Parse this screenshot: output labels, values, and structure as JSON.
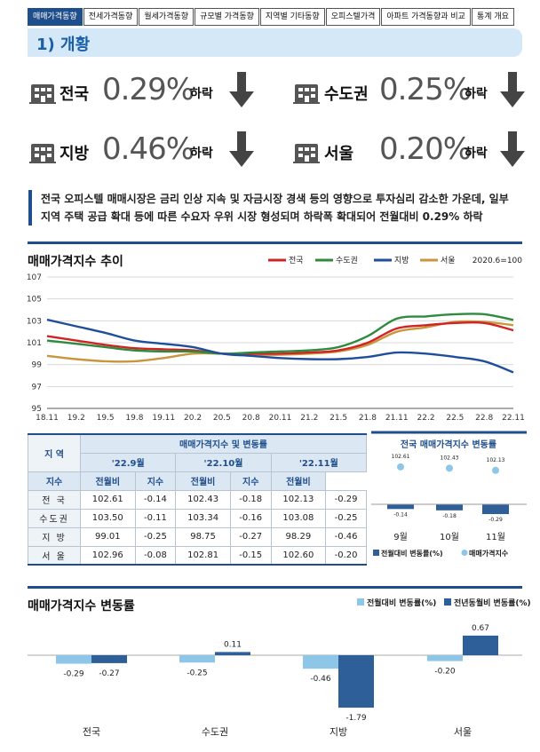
{
  "nav": {
    "tabs": [
      "매매가격동향",
      "전세가격동향",
      "월세가격동향",
      "규모별 가격동향",
      "지역별 기타동향",
      "오피스텔가격",
      "아파트 가격동향과 비교",
      "통계 개요"
    ]
  },
  "section": {
    "title": "1) 개황"
  },
  "summary": [
    {
      "region": "전국",
      "value": "0.29%",
      "direction": "하락"
    },
    {
      "region": "수도권",
      "value": "0.25%",
      "direction": "하락"
    },
    {
      "region": "지방",
      "value": "0.46%",
      "direction": "하락"
    },
    {
      "region": "서울",
      "value": "0.20%",
      "direction": "하락"
    }
  ],
  "note": {
    "line1": "전국 오피스텔 매매시장은 금리 인상 지속 및 자금시장 경색 등의 영향으로 투자심리 감소한 가운데, 일부",
    "line2": "지역 주택 공급 확대 등에 따른 수요자 우위 시장 형성되며 하락폭 확대되어 전월대비 0.29% 하락"
  },
  "colors": {
    "nationwide": "#d02424",
    "capital": "#2e8b3e",
    "regional": "#1f4e9a",
    "seoul": "#c8963c",
    "accent": "#1f4e8c",
    "bar_light": "#8ec6e8",
    "bar_dark": "#2f5f98"
  },
  "chart_data": [
    {
      "type": "line",
      "title": "매매가격지수 추이",
      "note": "2020.6=100",
      "x_ticks": [
        "18.11",
        "19.2",
        "19.5",
        "19.8",
        "19.11",
        "20.2",
        "20.5",
        "20.8",
        "20.11",
        "21.2",
        "21.5",
        "21.8",
        "21.11",
        "22.2",
        "22.5",
        "22.8",
        "22.11"
      ],
      "ylim": [
        95,
        107
      ],
      "y_ticks": [
        95,
        97,
        99,
        101,
        103,
        105,
        107
      ],
      "legend_position": "top-right",
      "series": [
        {
          "name": "전국",
          "values": [
            101.6,
            101.2,
            100.8,
            100.5,
            100.4,
            100.3,
            100.0,
            100.0,
            100.0,
            100.1,
            100.3,
            101.0,
            102.3,
            102.6,
            102.8,
            102.8,
            102.13
          ]
        },
        {
          "name": "수도권",
          "values": [
            101.2,
            100.9,
            100.6,
            100.3,
            100.2,
            100.2,
            100.0,
            100.1,
            100.2,
            100.3,
            100.6,
            101.6,
            103.2,
            103.4,
            103.6,
            103.6,
            103.08
          ]
        },
        {
          "name": "지방",
          "values": [
            103.1,
            102.5,
            101.9,
            101.2,
            100.9,
            100.6,
            100.0,
            99.8,
            99.6,
            99.5,
            99.5,
            99.7,
            100.1,
            100.0,
            99.7,
            99.3,
            98.29
          ]
        },
        {
          "name": "서울",
          "values": [
            99.8,
            99.5,
            99.3,
            99.3,
            99.6,
            100.0,
            100.0,
            99.9,
            99.9,
            100.0,
            100.2,
            100.8,
            102.0,
            102.4,
            102.9,
            102.9,
            102.6
          ]
        }
      ]
    },
    {
      "type": "table",
      "title": "매매가격지수 및 변동률",
      "row_header": "지 역",
      "periods": [
        "'22.9월",
        "'22.10월",
        "'22.11월"
      ],
      "subcols": [
        "지수",
        "전월비"
      ],
      "rows": [
        {
          "region": "전 국",
          "cells": [
            "102.61",
            "-0.14",
            "102.43",
            "-0.18",
            "102.13",
            "-0.29"
          ]
        },
        {
          "region": "수도권",
          "cells": [
            "103.50",
            "-0.11",
            "103.34",
            "-0.16",
            "103.08",
            "-0.25"
          ]
        },
        {
          "region": "지 방",
          "cells": [
            "99.01",
            "-0.25",
            "98.75",
            "-0.27",
            "98.29",
            "-0.46"
          ]
        },
        {
          "region": "서 울",
          "cells": [
            "102.96",
            "-0.08",
            "102.81",
            "-0.15",
            "102.60",
            "-0.20"
          ]
        }
      ]
    },
    {
      "type": "bar",
      "title": "전국 매매가격지수 변동률",
      "categories": [
        "9월",
        "10월",
        "11월"
      ],
      "series": [
        {
          "name": "전월대비 변동률(%)",
          "values": [
            -0.14,
            -0.18,
            -0.29
          ]
        },
        {
          "name": "매매가격지수",
          "values": [
            102.61,
            102.43,
            102.13
          ]
        }
      ]
    },
    {
      "type": "bar",
      "title": "매매가격지수 변동률",
      "categories": [
        "전국",
        "수도권",
        "지방",
        "서울"
      ],
      "series": [
        {
          "name": "전월대비 변동률(%)",
          "values": [
            -0.29,
            -0.25,
            -0.46,
            -0.2
          ]
        },
        {
          "name": "전년동월비 변동률(%)",
          "values": [
            -0.27,
            0.11,
            -1.79,
            0.67
          ]
        }
      ]
    }
  ]
}
